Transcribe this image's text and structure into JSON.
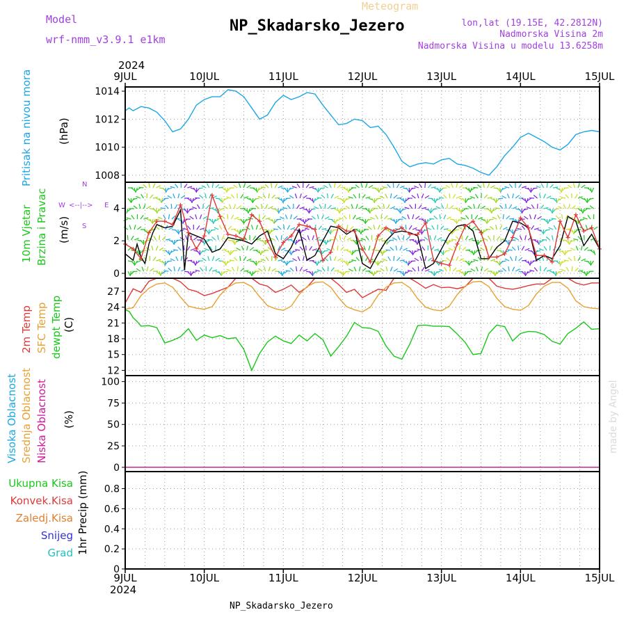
{
  "header": {
    "model_label": "Model",
    "model_name": "wrf-nmm_v3.9.1 e1km",
    "app_title": "Meteogram",
    "station_title": "NP_Skadarsko_Jezero",
    "coords": "lon,lat (19.15E, 42.2812N)",
    "altitude": "Nadmorska Visina 2m",
    "model_altitude": "Nadmorska Visina u modelu 13.6258m",
    "footer": "NP_Skadarsko_Jezero",
    "credit": "made by Angel",
    "year_top": "2024",
    "year_bottom": "2024"
  },
  "colors": {
    "purple": "#a040e0",
    "blue": "#1aa7e6",
    "red": "#e03838",
    "orange": "#e8a030",
    "green": "#18c818",
    "magenta": "#d0189a",
    "navy": "#3030e0",
    "teal": "#20c0c0",
    "brown": "#e08030",
    "lightgold": "#f0d090"
  },
  "chart_data": [
    {
      "type": "line",
      "panel": "pressure",
      "labels": [
        "Pritisak na nivou mora",
        "(hPa)"
      ],
      "yticks": [
        1008,
        1010,
        1012,
        1014
      ],
      "ylim": [
        1007.5,
        1014.3
      ],
      "xlim": [
        0,
        6
      ],
      "xtick_days": [
        "9JUL",
        "10JUL",
        "11JUL",
        "12JUL",
        "13JUL",
        "14JUL",
        "15JUL"
      ],
      "grid": true,
      "series": [
        {
          "color": "#1aa7e6",
          "x": [
            0,
            0.05,
            0.1,
            0.2,
            0.3,
            0.4,
            0.5,
            0.6,
            0.7,
            0.8,
            0.9,
            1.0,
            1.1,
            1.2,
            1.3,
            1.4,
            1.5,
            1.6,
            1.7,
            1.8,
            1.9,
            2.0,
            2.1,
            2.2,
            2.3,
            2.4,
            2.5,
            2.6,
            2.7,
            2.8,
            2.9,
            3.0,
            3.1,
            3.2,
            3.3,
            3.4,
            3.5,
            3.6,
            3.7,
            3.8,
            3.9,
            4.0,
            4.1,
            4.2,
            4.3,
            4.4,
            4.5,
            4.6,
            4.7,
            4.8,
            4.9,
            5.0,
            5.1,
            5.2,
            5.3,
            5.4,
            5.5,
            5.6,
            5.7,
            5.8,
            5.9,
            6.0
          ],
          "y": [
            1012.6,
            1012.8,
            1012.6,
            1012.9,
            1012.8,
            1012.5,
            1011.9,
            1011.1,
            1011.3,
            1012.0,
            1013.0,
            1013.4,
            1013.6,
            1013.6,
            1014.1,
            1014.0,
            1013.6,
            1012.8,
            1012.0,
            1012.3,
            1013.2,
            1013.7,
            1013.4,
            1013.6,
            1013.9,
            1013.8,
            1013.0,
            1012.3,
            1011.6,
            1011.7,
            1012.0,
            1011.9,
            1011.4,
            1011.5,
            1010.9,
            1010.0,
            1009.0,
            1008.6,
            1008.8,
            1008.9,
            1008.8,
            1009.1,
            1009.2,
            1008.8,
            1008.7,
            1008.5,
            1008.2,
            1008.0,
            1008.6,
            1009.4,
            1010.0,
            1010.7,
            1011.0,
            1010.7,
            1010.4,
            1010.0,
            1009.8,
            1010.2,
            1010.9,
            1011.1,
            1011.2,
            1011.1
          ]
        }
      ]
    },
    {
      "type": "line",
      "panel": "wind",
      "labels": [
        "10m Vjetar",
        "Brzina i Pravac",
        "(m/s)"
      ],
      "direction_key": {
        "n": "N",
        "s": "S",
        "w": "W",
        "e": "E"
      },
      "yticks": [
        0,
        2,
        4
      ],
      "ylim": [
        -0.3,
        5.6
      ],
      "xlim": [
        0,
        6
      ],
      "grid": true,
      "series": [
        {
          "name": "speed",
          "color": "#000000",
          "x": [
            0,
            0.1,
            0.15,
            0.2,
            0.25,
            0.3,
            0.35,
            0.4,
            0.5,
            0.6,
            0.7,
            0.75,
            0.8,
            0.9,
            1.0,
            1.1,
            1.2,
            1.3,
            1.4,
            1.5,
            1.6,
            1.7,
            1.8,
            1.9,
            2.0,
            2.1,
            2.2,
            2.3,
            2.4,
            2.5,
            2.6,
            2.7,
            2.8,
            2.9,
            3.0,
            3.1,
            3.2,
            3.3,
            3.4,
            3.5,
            3.6,
            3.7,
            3.8,
            3.9,
            4.0,
            4.1,
            4.2,
            4.3,
            4.4,
            4.5,
            4.6,
            4.7,
            4.8,
            4.9,
            5.0,
            5.1,
            5.2,
            5.3,
            5.4,
            5.5,
            5.6,
            5.7,
            5.8,
            5.9,
            6.0
          ],
          "y": [
            1.2,
            0.8,
            1.8,
            1.0,
            0.6,
            1.8,
            2.5,
            3.0,
            2.8,
            2.9,
            3.9,
            0.2,
            2.5,
            2.3,
            2.1,
            1.3,
            1.5,
            2.2,
            2.1,
            2.0,
            1.8,
            2.3,
            2.6,
            1.2,
            0.9,
            1.6,
            2.7,
            0.8,
            1.1,
            2.0,
            2.9,
            2.8,
            2.4,
            2.7,
            0.6,
            0.3,
            1.2,
            2.0,
            2.5,
            2.6,
            2.5,
            2.3,
            0.3,
            0.6,
            1.5,
            2.4,
            2.9,
            3.0,
            2.6,
            0.9,
            0.9,
            1.6,
            2.0,
            3.2,
            3.1,
            2.8,
            0.8,
            1.1,
            0.9,
            1.7,
            3.5,
            3.2,
            1.7,
            2.4,
            1.5
          ]
        },
        {
          "name": "gust",
          "color": "#e03838",
          "x": [
            0,
            0.1,
            0.2,
            0.3,
            0.4,
            0.5,
            0.6,
            0.7,
            0.8,
            0.9,
            1.0,
            1.1,
            1.2,
            1.3,
            1.4,
            1.5,
            1.6,
            1.7,
            1.8,
            1.9,
            2.0,
            2.1,
            2.2,
            2.3,
            2.4,
            2.5,
            2.6,
            2.7,
            2.8,
            2.9,
            3.0,
            3.1,
            3.2,
            3.3,
            3.4,
            3.5,
            3.6,
            3.7,
            3.8,
            3.9,
            4.0,
            4.1,
            4.2,
            4.3,
            4.4,
            4.5,
            4.6,
            4.7,
            4.8,
            4.9,
            5.0,
            5.1,
            5.2,
            5.3,
            5.4,
            5.5,
            5.6,
            5.7,
            5.8,
            5.9,
            6.0
          ],
          "y": [
            1.8,
            1.5,
            0.9,
            2.5,
            3.2,
            3.2,
            3.0,
            4.2,
            2.5,
            1.5,
            2.3,
            4.8,
            3.5,
            2.4,
            2.3,
            2.1,
            3.6,
            3.2,
            2.0,
            1.0,
            1.9,
            2.3,
            3.0,
            2.9,
            2.7,
            0.8,
            1.3,
            2.9,
            2.6,
            2.6,
            1.5,
            0.7,
            2.3,
            2.8,
            2.6,
            2.8,
            2.4,
            2.4,
            3.1,
            0.8,
            0.6,
            0.5,
            1.8,
            2.9,
            3.2,
            2.5,
            1.0,
            1.0,
            1.2,
            2.2,
            3.4,
            2.8,
            1.1,
            1.1,
            0.7,
            3.2,
            2.2,
            3.6,
            2.6,
            2.8,
            1.5
          ]
        }
      ]
    },
    {
      "type": "line",
      "panel": "temperature",
      "labels": [
        "2m Temp",
        "SFC Temp",
        "dewpt Temp",
        "(C)"
      ],
      "yticks": [
        12,
        15,
        18,
        21,
        24,
        27
      ],
      "ylim": [
        11,
        29.5
      ],
      "xlim": [
        0,
        6
      ],
      "grid": true,
      "series": [
        {
          "name": "2m Temp",
          "color": "#e03838",
          "x": [
            0,
            0.1,
            0.2,
            0.3,
            0.4,
            0.5,
            0.6,
            0.7,
            0.8,
            0.9,
            1.0,
            1.1,
            1.2,
            1.3,
            1.4,
            1.5,
            1.6,
            1.7,
            1.8,
            1.9,
            2.0,
            2.1,
            2.2,
            2.3,
            2.4,
            2.5,
            2.6,
            2.7,
            2.8,
            2.9,
            3.0,
            3.1,
            3.2,
            3.3,
            3.4,
            3.5,
            3.6,
            3.7,
            3.8,
            3.9,
            4.0,
            4.1,
            4.2,
            4.3,
            4.4,
            4.5,
            4.6,
            4.7,
            4.8,
            4.9,
            5.0,
            5.1,
            5.2,
            5.3,
            5.4,
            5.5,
            5.6,
            5.7,
            5.8,
            5.9,
            6.0
          ],
          "y": [
            24.8,
            27.5,
            26.8,
            28.9,
            30.0,
            30.0,
            30.0,
            28.8,
            27.4,
            27.0,
            26.2,
            26.6,
            27.2,
            27.8,
            30.0,
            30.0,
            29.8,
            28.4,
            28.0,
            26.8,
            27.4,
            28.2,
            26.8,
            27.8,
            30.0,
            30.0,
            29.6,
            28.3,
            26.8,
            27.4,
            25.8,
            26.6,
            27.4,
            27.2,
            30.0,
            30.0,
            30.0,
            28.6,
            27.6,
            28.3,
            27.7,
            27.8,
            27.5,
            27.9,
            30.0,
            30.0,
            30.0,
            28.0,
            27.6,
            27.4,
            27.7,
            28.1,
            28.4,
            28.4,
            30.0,
            30.0,
            29.7,
            28.6,
            28.2,
            28.6,
            28.6
          ]
        },
        {
          "name": "SFC Temp",
          "color": "#e8a030",
          "x": [
            0,
            0.1,
            0.2,
            0.3,
            0.4,
            0.5,
            0.6,
            0.7,
            0.8,
            0.9,
            1.0,
            1.1,
            1.2,
            1.3,
            1.4,
            1.5,
            1.6,
            1.7,
            1.8,
            1.9,
            2.0,
            2.1,
            2.2,
            2.3,
            2.4,
            2.5,
            2.6,
            2.7,
            2.8,
            2.9,
            3.0,
            3.1,
            3.2,
            3.3,
            3.4,
            3.5,
            3.6,
            3.7,
            3.8,
            3.9,
            4.0,
            4.1,
            4.2,
            4.3,
            4.4,
            4.5,
            4.6,
            4.7,
            4.8,
            4.9,
            5.0,
            5.1,
            5.2,
            5.3,
            5.4,
            5.5,
            5.6,
            5.7,
            5.8,
            5.9,
            6.0
          ],
          "y": [
            23.6,
            23.9,
            26.2,
            27.6,
            28.4,
            28.6,
            27.8,
            25.9,
            24.2,
            23.8,
            23.6,
            24.1,
            26.3,
            27.8,
            28.6,
            28.7,
            27.9,
            26.0,
            24.3,
            23.7,
            23.4,
            24.2,
            26.4,
            27.9,
            28.7,
            28.8,
            27.8,
            25.8,
            24.1,
            23.5,
            23.1,
            24.0,
            26.3,
            27.8,
            28.6,
            28.7,
            27.7,
            25.6,
            24.0,
            23.5,
            23.3,
            24.2,
            26.4,
            28.0,
            28.8,
            28.9,
            27.9,
            25.7,
            24.1,
            23.6,
            23.4,
            24.3,
            26.5,
            28.0,
            28.7,
            28.7,
            27.6,
            25.2,
            24.1,
            23.8,
            23.7
          ]
        },
        {
          "name": "dewpt Temp",
          "color": "#18c818",
          "x": [
            0,
            0.05,
            0.1,
            0.15,
            0.2,
            0.3,
            0.4,
            0.5,
            0.6,
            0.7,
            0.8,
            0.9,
            1.0,
            1.1,
            1.2,
            1.3,
            1.4,
            1.5,
            1.6,
            1.7,
            1.8,
            1.9,
            2.0,
            2.1,
            2.2,
            2.3,
            2.4,
            2.5,
            2.6,
            2.7,
            2.8,
            2.9,
            3.0,
            3.1,
            3.2,
            3.3,
            3.4,
            3.5,
            3.6,
            3.7,
            3.8,
            3.9,
            4.0,
            4.1,
            4.2,
            4.3,
            4.4,
            4.5,
            4.6,
            4.7,
            4.8,
            4.9,
            5.0,
            5.1,
            5.2,
            5.3,
            5.4,
            5.5,
            5.6,
            5.7,
            5.8,
            5.9,
            6.0
          ],
          "y": [
            23.5,
            23.2,
            22.0,
            21.3,
            20.4,
            20.5,
            20.1,
            17.2,
            17.7,
            18.4,
            19.9,
            17.7,
            18.7,
            18.2,
            18.6,
            18.0,
            18.2,
            16.0,
            12.0,
            15.2,
            17.4,
            18.5,
            17.6,
            17.1,
            18.7,
            17.6,
            19.0,
            17.8,
            14.7,
            16.5,
            18.5,
            21.1,
            20.1,
            20.0,
            19.4,
            16.6,
            14.7,
            14.1,
            17.0,
            20.5,
            20.6,
            20.4,
            20.4,
            20.3,
            18.9,
            17.3,
            15.0,
            15.2,
            19.0,
            20.6,
            20.3,
            17.6,
            19.0,
            19.4,
            19.3,
            18.8,
            17.5,
            17.0,
            19.0,
            20.0,
            21.2,
            19.8,
            19.9
          ]
        }
      ]
    },
    {
      "type": "line",
      "panel": "cloud",
      "labels": [
        "Visoka Oblacnost",
        "Srednja Oblacnost",
        "Niska Oblacnost",
        "(%)"
      ],
      "yticks": [
        0,
        25,
        50,
        75,
        100
      ],
      "ylim": [
        -5,
        107
      ],
      "xlim": [
        0,
        6
      ],
      "grid": true,
      "series": [
        {
          "name": "Visoka Oblacnost",
          "color": "#1aa7e6",
          "x": [
            0,
            6
          ],
          "y": [
            0,
            0
          ]
        },
        {
          "name": "Srednja Oblacnost",
          "color": "#e8a030",
          "x": [
            0,
            6
          ],
          "y": [
            0,
            0
          ]
        },
        {
          "name": "Niska Oblacnost",
          "color": "#d0189a",
          "x": [
            0,
            6
          ],
          "y": [
            0,
            0
          ]
        }
      ]
    },
    {
      "type": "bar",
      "panel": "precip",
      "labels": [
        "Ukupna Kisa",
        "Konvek.Kisa",
        "Zaledj.Kisa",
        "Snijeg",
        "Grad",
        "1hr Precip (mm)"
      ],
      "yticks": [
        "0",
        "0.2",
        "0.4",
        "0.6",
        "0.8"
      ],
      "ylim": [
        0,
        0.97
      ],
      "xlim": [
        0,
        6
      ],
      "grid": true,
      "series": []
    }
  ]
}
